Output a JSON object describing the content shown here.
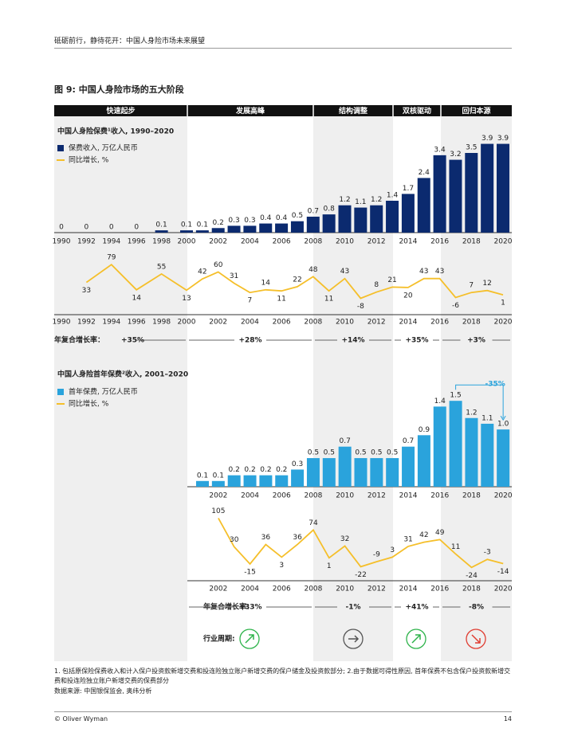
{
  "header": "砥砺前行，静待花开：中国人身险市场未来展望",
  "figure_title": "图 9: 中国人身险市场的五大阶段",
  "phases": [
    "快速起步",
    "发展高峰",
    "结构调整",
    "双核驱动",
    "回归本源"
  ],
  "cagr_label": "年复合增长率：",
  "cagr_1": [
    "+35%",
    "+28%",
    "+14%",
    "+35%",
    "+3%"
  ],
  "cagr_2": [
    "+33%",
    "-1%",
    "+41%",
    "-8%"
  ],
  "cycle_label": "行业周期:",
  "chart_data": [
    {
      "type": "bar",
      "title": "中国人身险保费¹收入, 1990–2020",
      "categories": [
        "1990",
        "1992",
        "1994",
        "1996",
        "1998",
        "2000",
        null,
        "2002",
        null,
        "2004",
        null,
        "2006",
        null,
        "2008",
        null,
        "2010",
        null,
        "2012",
        null,
        "2014",
        null,
        "2016",
        null,
        "2018",
        null,
        "2020"
      ],
      "series": [
        {
          "name": "保费收入, 万亿人民币",
          "color": "#0b2a6f",
          "values": [
            0,
            0,
            0,
            0,
            0.1,
            0.1,
            0.1,
            0.2,
            0.3,
            0.3,
            0.4,
            0.4,
            0.5,
            0.7,
            0.8,
            1.2,
            1.1,
            1.2,
            1.4,
            1.7,
            2.4,
            3.4,
            3.2,
            3.5,
            3.9,
            3.9
          ]
        },
        {
          "name": "同比增长, %",
          "type": "line",
          "axis": "y2",
          "color": "#f5bf2a",
          "values": [
            null,
            33,
            79,
            14,
            55,
            13,
            42,
            60,
            31,
            7,
            14,
            11,
            22,
            48,
            11,
            43,
            -8,
            8,
            21,
            20,
            43,
            43,
            -6,
            7,
            12,
            1
          ]
        }
      ],
      "ylim": [
        0,
        4.2
      ],
      "y2lim": [
        -40,
        100
      ]
    },
    {
      "type": "bar",
      "title": "中国人身险首年保费²收入, 2001–2020",
      "categories": [
        null,
        "2002",
        null,
        "2004",
        null,
        "2006",
        null,
        "2008",
        null,
        "2010",
        null,
        "2012",
        null,
        "2014",
        null,
        "2016",
        null,
        "2018",
        null,
        "2020"
      ],
      "series": [
        {
          "name": "首年保费, 万亿人民币",
          "color": "#2aa3dc",
          "values": [
            0.1,
            0.1,
            0.2,
            0.2,
            0.2,
            0.2,
            0.3,
            0.5,
            0.5,
            0.7,
            0.5,
            0.5,
            0.5,
            0.7,
            0.9,
            1.4,
            1.5,
            1.2,
            1.1,
            1.0
          ],
          "value_labels": [
            "0.1",
            "0.1",
            "0.2",
            "0.2",
            "0.2",
            "0.2",
            "0.3",
            "0.5",
            "0.5",
            "0.7",
            "0.5",
            "0.5",
            "0.5",
            "0.7",
            "0.9",
            "1.4",
            "1.5",
            "1.2",
            "1.1",
            "1.0"
          ]
        },
        {
          "name": "同比增长, %",
          "type": "line",
          "axis": "y2",
          "color": "#f5bf2a",
          "values": [
            null,
            105,
            30,
            -15,
            36,
            3,
            36,
            74,
            1,
            32,
            -22,
            -9,
            3,
            31,
            42,
            49,
            11,
            -24,
            -3,
            -14
          ]
        }
      ],
      "ylim": [
        0,
        1.6
      ],
      "y2lim": [
        -40,
        110
      ],
      "annotation": "-35%"
    }
  ],
  "footnote": "1. 包括原保险保费收入和计入保户投资款新增交费和投连险独立账户新增交费的保户储金及投资款部分; 2.由于数据可得性原因, 首年保费不包含保户投资款新增交费和投连险独立账户新增交费的保费部分",
  "source": "数据来源: 中国银保监会, 奥纬分析",
  "footer": {
    "left": "© Oliver Wyman",
    "page": "14"
  }
}
